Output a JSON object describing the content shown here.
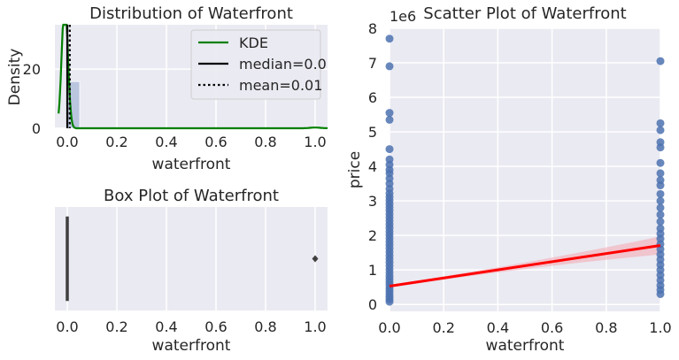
{
  "chart_data": [
    {
      "type": "histogram",
      "title": "Distribution of Waterfront",
      "xlabel": "waterfront",
      "ylabel": "Density",
      "xlim": [
        -0.05,
        1.05
      ],
      "ylim": [
        0,
        35
      ],
      "xticks": [
        "0.0",
        "0.2",
        "0.4",
        "0.6",
        "0.8",
        "1.0"
      ],
      "yticks": [
        "0",
        "20"
      ],
      "bins": [
        {
          "x0": 0.0,
          "x1": 0.05,
          "density": 15.8
        },
        {
          "x0": 0.95,
          "x1": 1.0,
          "density": 0.15
        }
      ],
      "kde": {
        "name": "KDE",
        "color": "#008000",
        "peak_x": -0.01,
        "peak_density": 35
      },
      "median": {
        "name": "median=0.0",
        "value": 0.0,
        "color": "#000000"
      },
      "mean": {
        "name": "mean=0.01",
        "value": 0.01,
        "color": "#000000"
      },
      "legend": [
        "KDE",
        "median=0.0",
        "mean=0.01"
      ],
      "legend_position": "top-right"
    },
    {
      "type": "box",
      "title": "Box Plot of Waterfront",
      "xlabel": "waterfront",
      "xlim": [
        -0.05,
        1.05
      ],
      "xticks": [
        "0.0",
        "0.2",
        "0.4",
        "0.6",
        "0.8",
        "1.0"
      ],
      "box": {
        "q1": 0.0,
        "median": 0.0,
        "q3": 0.0,
        "whisker_low": 0.0,
        "whisker_high": 0.0
      },
      "outliers": [
        1.0
      ]
    },
    {
      "type": "scatter",
      "title": "Scatter Plot of Waterfront",
      "xlabel": "waterfront",
      "ylabel": "price",
      "y_offset_label": "1e6",
      "xlim": [
        0.0,
        1.0
      ],
      "ylim": [
        -0.2,
        8.0
      ],
      "xticks": [
        "0.0",
        "0.2",
        "0.4",
        "0.6",
        "0.8",
        "1.0"
      ],
      "yticks": [
        "0",
        "1",
        "2",
        "3",
        "4",
        "5",
        "6",
        "7",
        "8"
      ],
      "points": [
        [
          0,
          0.08
        ],
        [
          0,
          0.15
        ],
        [
          0,
          0.22
        ],
        [
          0,
          0.3
        ],
        [
          0,
          0.38
        ],
        [
          0,
          0.46
        ],
        [
          0,
          0.55
        ],
        [
          0,
          0.64
        ],
        [
          0,
          0.73
        ],
        [
          0,
          0.82
        ],
        [
          0,
          0.92
        ],
        [
          0,
          1.02
        ],
        [
          0,
          1.12
        ],
        [
          0,
          1.22
        ],
        [
          0,
          1.32
        ],
        [
          0,
          1.42
        ],
        [
          0,
          1.52
        ],
        [
          0,
          1.62
        ],
        [
          0,
          1.72
        ],
        [
          0,
          1.82
        ],
        [
          0,
          1.92
        ],
        [
          0,
          2.02
        ],
        [
          0,
          2.12
        ],
        [
          0,
          2.22
        ],
        [
          0,
          2.32
        ],
        [
          0,
          2.42
        ],
        [
          0,
          2.52
        ],
        [
          0,
          2.62
        ],
        [
          0,
          2.72
        ],
        [
          0,
          2.82
        ],
        [
          0,
          2.92
        ],
        [
          0,
          3.02
        ],
        [
          0,
          3.12
        ],
        [
          0,
          3.22
        ],
        [
          0,
          3.35
        ],
        [
          0,
          3.5
        ],
        [
          0,
          3.65
        ],
        [
          0,
          3.8
        ],
        [
          0,
          3.9
        ],
        [
          0,
          4.05
        ],
        [
          0,
          4.2
        ],
        [
          0,
          4.5
        ],
        [
          0,
          5.35
        ],
        [
          0,
          5.55
        ],
        [
          0,
          6.9
        ],
        [
          0,
          7.7
        ],
        [
          1,
          0.3
        ],
        [
          1,
          0.42
        ],
        [
          1,
          0.55
        ],
        [
          1,
          0.7
        ],
        [
          1,
          0.85
        ],
        [
          1,
          1.0
        ],
        [
          1,
          1.15
        ],
        [
          1,
          1.3
        ],
        [
          1,
          1.45
        ],
        [
          1,
          1.6
        ],
        [
          1,
          1.75
        ],
        [
          1,
          1.9
        ],
        [
          1,
          2.05
        ],
        [
          1,
          2.2
        ],
        [
          1,
          2.4
        ],
        [
          1,
          2.6
        ],
        [
          1,
          2.8
        ],
        [
          1,
          3.0
        ],
        [
          1,
          3.2
        ],
        [
          1,
          3.45
        ],
        [
          1,
          3.6
        ],
        [
          1,
          3.8
        ],
        [
          1,
          4.1
        ],
        [
          1,
          4.55
        ],
        [
          1,
          4.7
        ],
        [
          1,
          5.05
        ],
        [
          1,
          5.25
        ],
        [
          1,
          7.05
        ]
      ],
      "point_color": "#4c72b0",
      "regression": {
        "x": [
          0.0,
          1.0
        ],
        "y": [
          0.53,
          1.71
        ],
        "color": "#ff0000",
        "ci_color": "#f4a6b0"
      }
    }
  ]
}
